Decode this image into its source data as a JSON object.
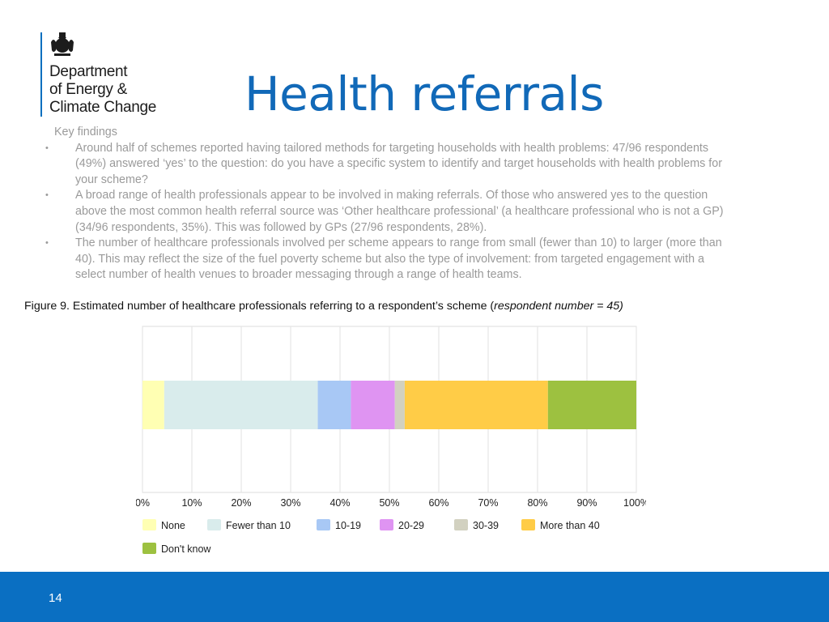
{
  "logo": {
    "org_lines": [
      "Department",
      "of Energy &",
      "Climate Change"
    ],
    "brand_color": "#006fbf"
  },
  "title": "Health referrals",
  "findings": {
    "heading": "Key findings",
    "bullet_glyph": "•",
    "items": [
      "Around half of schemes reported having tailored methods for targeting households with health problems: 47/96 respondents (49%) answered ‘yes’ to the question: do you have a specific system to identify and target households with health problems for your scheme?",
      "A broad range of health professionals appear to be involved in making referrals. Of those who answered yes to the question above the most common health referral source was ‘Other healthcare professional’ (a healthcare professional who is not a GP) (34/96 respondents, 35%). This was followed by GPs (27/96 respondents, 28%).",
      "The number of healthcare professionals involved per scheme appears to range from small (fewer than 10) to larger (more than 40). This may reflect the size of the fuel poverty scheme but also the type of involvement: from targeted engagement with a select number of health venues to broader messaging through a range of health teams."
    ]
  },
  "caption": {
    "text": "Figure 9. Estimated number of healthcare professionals referring to a respondent’s scheme (",
    "italic": "respondent number = 45)"
  },
  "chart_data": {
    "type": "bar",
    "orientation": "horizontal-stacked-100",
    "xlim": [
      0,
      100
    ],
    "x_ticks": [
      "0%",
      "10%",
      "20%",
      "30%",
      "40%",
      "50%",
      "60%",
      "70%",
      "80%",
      "90%",
      "100%"
    ],
    "grid": true,
    "legend_position": "bottom-left",
    "series": [
      {
        "name": "None",
        "value": 4.4,
        "color": "#ffffb3"
      },
      {
        "name": "Fewer than 10",
        "value": 31.1,
        "color": "#d9ecec"
      },
      {
        "name": "10-19",
        "value": 6.7,
        "color": "#a8c8f5"
      },
      {
        "name": "20-29",
        "value": 8.9,
        "color": "#df94f2"
      },
      {
        "name": "30-39",
        "value": 2.0,
        "color": "#d2d1c0"
      },
      {
        "name": "More than 40",
        "value": 29.0,
        "color": "#ffcc47"
      },
      {
        "name": "Don't know",
        "value": 17.9,
        "color": "#9dc140"
      }
    ]
  },
  "footer": {
    "page_number": "14"
  }
}
